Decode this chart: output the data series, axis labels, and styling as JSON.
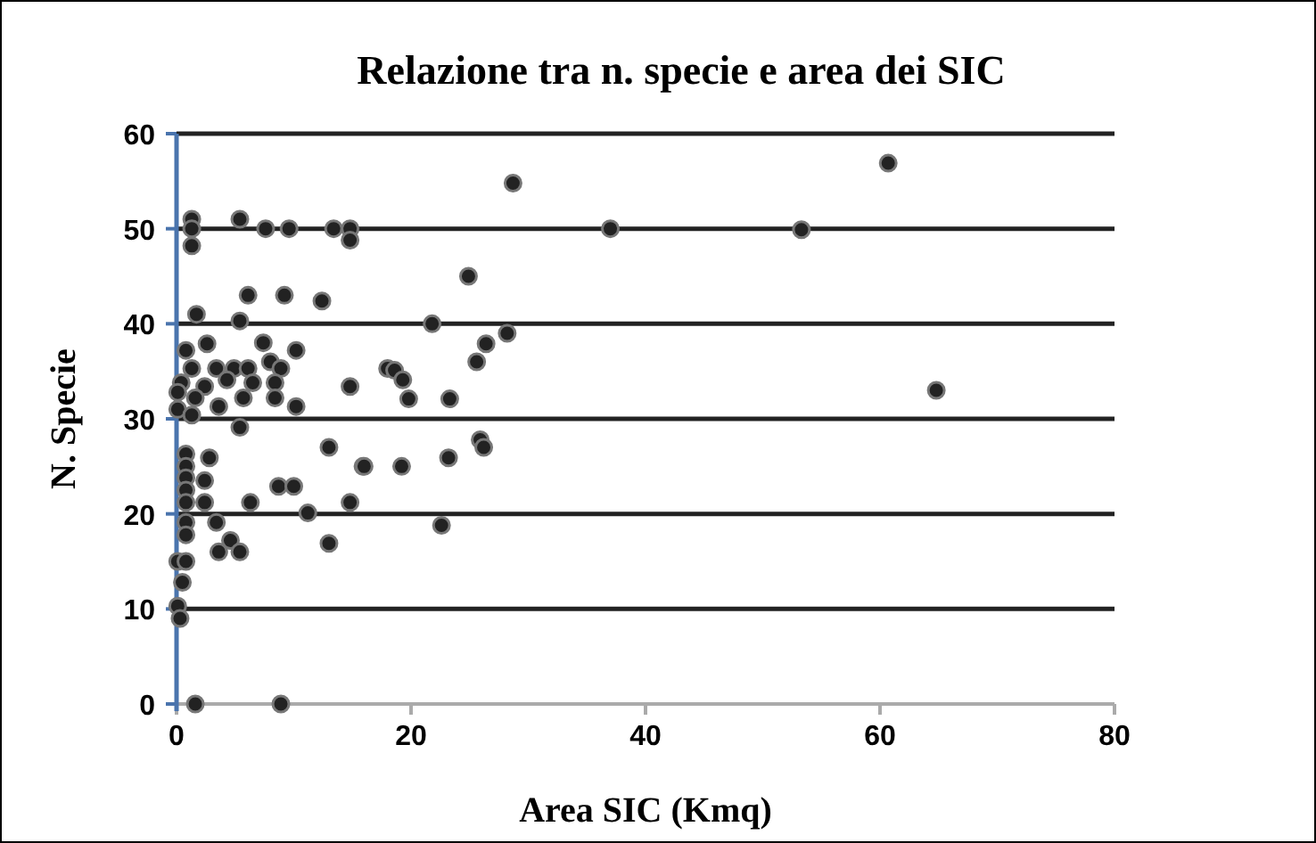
{
  "chart_data": {
    "type": "scatter",
    "title": "Relazione tra n. specie e area dei SIC",
    "xlabel": "Area SIC (Kmq)",
    "ylabel": "N. Specie",
    "xlim": [
      0,
      80
    ],
    "xticks": [
      0,
      20,
      40,
      60,
      80
    ],
    "ylim": [
      0,
      60
    ],
    "yticks": [
      0,
      10,
      20,
      30,
      40,
      50,
      60
    ],
    "grid": "y",
    "marker": "circle",
    "series": [
      {
        "color": "#222222",
        "x": [
          1.3,
          1.3,
          1.3,
          5.4,
          7.6,
          9.6,
          13.4,
          14.8,
          14.8,
          6.1,
          9.2,
          12.4,
          1.7,
          5.4,
          7.4,
          10.2,
          0.8,
          2.6,
          1.3,
          3.4,
          4.9,
          6.1,
          8,
          8.9,
          0.4,
          2.4,
          4.3,
          6.5,
          8.4,
          0.1,
          1.6,
          3.6,
          5.7,
          8.4,
          10.2,
          14.8,
          18,
          0.1,
          1.3,
          5.4,
          0.8,
          2.8,
          0.8,
          0.8,
          2.4,
          0.8,
          0.8,
          2.4,
          13,
          15.9,
          8.7,
          10,
          6.3,
          11.2,
          14.8,
          0.8,
          3.4,
          0.8,
          4.6,
          3.6,
          5.4,
          13,
          0.1,
          0.8,
          0.5,
          0.1,
          0.3,
          1.6,
          8.9,
          28.7,
          37,
          24.9,
          21.8,
          26.4,
          28.2,
          25.6,
          18.6,
          19.3,
          19.8,
          23.3,
          25.9,
          26.2,
          23.2,
          16,
          19.2,
          22.6,
          60.7,
          53.3,
          64.8
        ],
        "values": [
          51,
          50,
          48.2,
          51,
          50,
          50,
          50,
          50,
          48.8,
          43,
          43,
          42.4,
          41,
          40.3,
          38,
          37.2,
          37.2,
          37.9,
          35.3,
          35.3,
          35.3,
          35.3,
          36,
          35.3,
          33.8,
          33.4,
          34.1,
          33.8,
          33.8,
          32.8,
          32.2,
          31.3,
          32.2,
          32.2,
          31.3,
          33.4,
          35.3,
          31,
          30.4,
          29.1,
          26.3,
          25.9,
          25,
          23.8,
          23.5,
          22.5,
          21.2,
          21.2,
          27,
          25,
          22.9,
          22.9,
          21.2,
          20.1,
          21.2,
          19.1,
          19.1,
          17.8,
          17.2,
          16,
          16,
          16.9,
          15,
          15,
          12.8,
          10.3,
          9,
          0,
          0,
          54.8,
          50,
          45,
          40,
          37.9,
          39,
          36,
          35.1,
          34.1,
          32.1,
          32.1,
          27.8,
          27,
          25.9,
          25,
          25,
          18.8,
          56.9,
          49.9,
          33
        ]
      }
    ]
  }
}
